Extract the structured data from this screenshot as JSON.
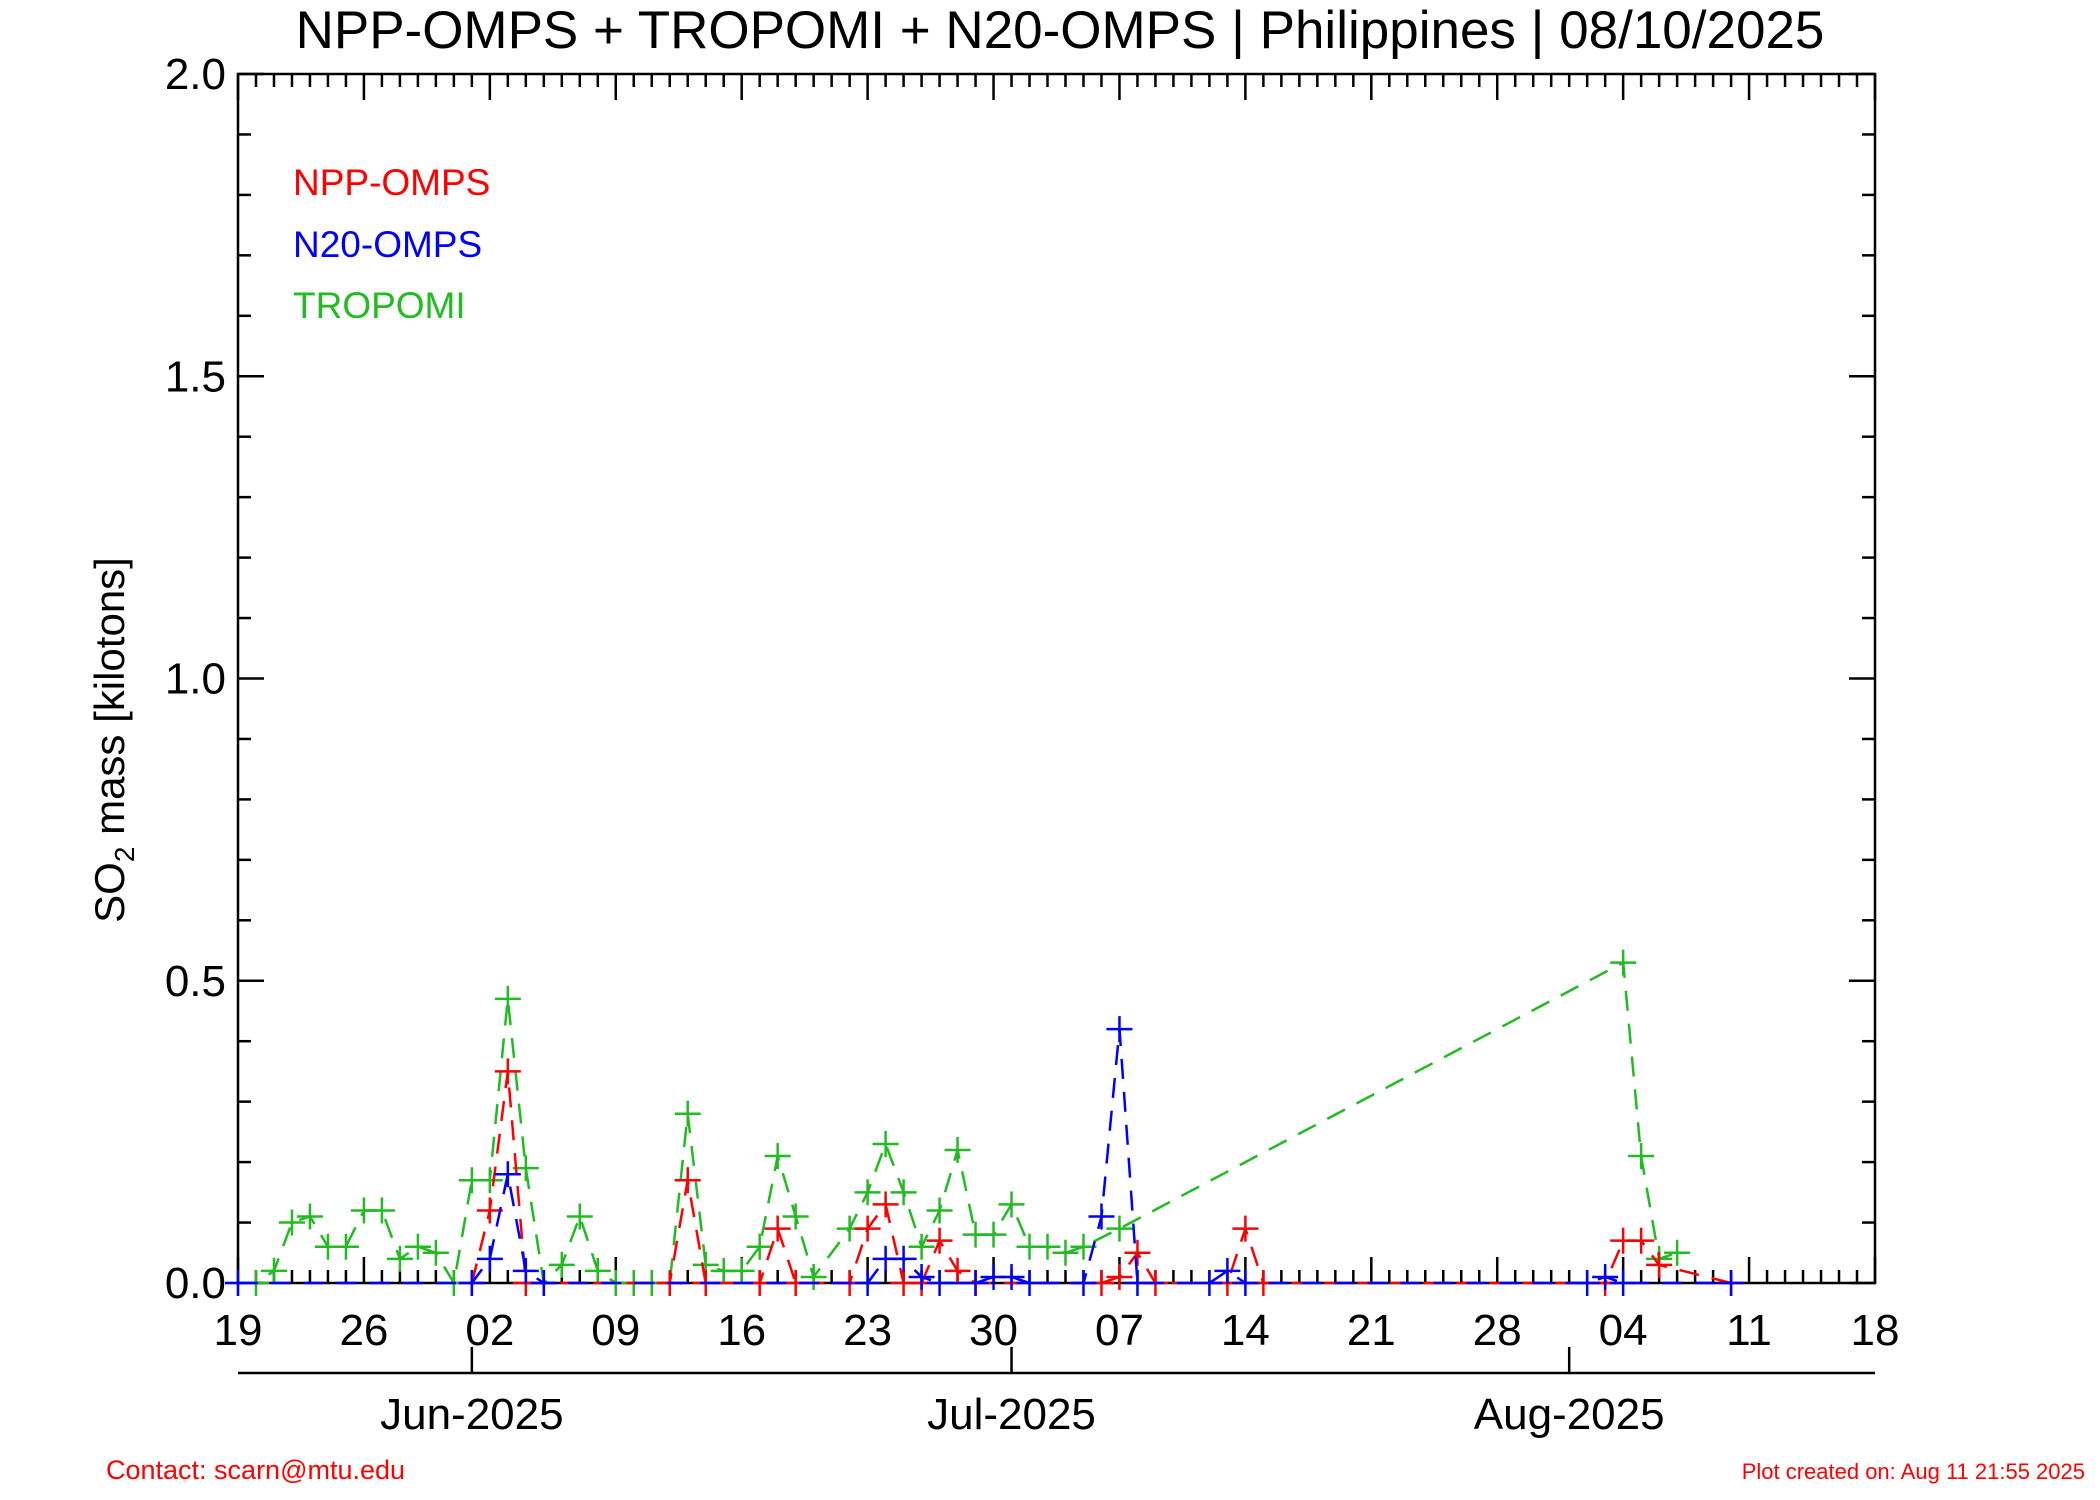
{
  "chart_data": {
    "type": "line",
    "title": "NPP-OMPS + TROPOMI + N20-OMPS | Philippines | 08/10/2025",
    "ylabel_prefix": "SO",
    "ylabel_sub": "2",
    "ylabel_suffix": " mass [kilotons]",
    "ylim": [
      0,
      2.0
    ],
    "yticks": [
      {
        "value": 0.0,
        "label": "0.0"
      },
      {
        "value": 0.5,
        "label": "0.5"
      },
      {
        "value": 1.0,
        "label": "1.0"
      },
      {
        "value": 1.5,
        "label": "1.5"
      },
      {
        "value": 2.0,
        "label": "2.0"
      }
    ],
    "xlim": [
      "2025-05-19",
      "2025-08-18"
    ],
    "xticks": [
      {
        "date": "2025-05-19",
        "label": "19"
      },
      {
        "date": "2025-05-26",
        "label": "26"
      },
      {
        "date": "2025-06-02",
        "label": "02"
      },
      {
        "date": "2025-06-09",
        "label": "09"
      },
      {
        "date": "2025-06-16",
        "label": "16"
      },
      {
        "date": "2025-06-23",
        "label": "23"
      },
      {
        "date": "2025-06-30",
        "label": "30"
      },
      {
        "date": "2025-07-07",
        "label": "07"
      },
      {
        "date": "2025-07-14",
        "label": "14"
      },
      {
        "date": "2025-07-21",
        "label": "21"
      },
      {
        "date": "2025-07-28",
        "label": "28"
      },
      {
        "date": "2025-08-04",
        "label": "04"
      },
      {
        "date": "2025-08-11",
        "label": "11"
      },
      {
        "date": "2025-08-18",
        "label": "18"
      }
    ],
    "months": [
      {
        "date": "2025-06-01",
        "label": "Jun-2025"
      },
      {
        "date": "2025-07-01",
        "label": "Jul-2025"
      },
      {
        "date": "2025-08-01",
        "label": "Aug-2025"
      }
    ],
    "legend_position": "top-left",
    "series": [
      {
        "name": "TROPOMI",
        "color": "#22bb22",
        "points": [
          [
            "2025-05-19",
            0.0
          ],
          [
            "2025-05-20",
            0.0
          ],
          [
            "2025-05-21",
            0.02
          ],
          [
            "2025-05-22",
            0.1
          ],
          [
            "2025-05-23",
            0.11
          ],
          [
            "2025-05-24",
            0.06
          ],
          [
            "2025-05-25",
            0.06
          ],
          [
            "2025-05-26",
            0.12
          ],
          [
            "2025-05-27",
            0.12
          ],
          [
            "2025-05-28",
            0.04
          ],
          [
            "2025-05-29",
            0.06
          ],
          [
            "2025-05-30",
            0.05
          ],
          [
            "2025-05-31",
            0.0
          ],
          [
            "2025-06-01",
            0.17
          ],
          [
            "2025-06-02",
            0.17
          ],
          [
            "2025-06-03",
            0.47
          ],
          [
            "2025-06-04",
            0.19
          ],
          [
            "2025-06-05",
            0.0
          ],
          [
            "2025-06-06",
            0.03
          ],
          [
            "2025-06-07",
            0.11
          ],
          [
            "2025-06-08",
            0.02
          ],
          [
            "2025-06-09",
            0.0
          ],
          [
            "2025-06-10",
            0.0
          ],
          [
            "2025-06-11",
            0.0
          ],
          [
            "2025-06-12",
            0.0
          ],
          [
            "2025-06-13",
            0.28
          ],
          [
            "2025-06-14",
            0.03
          ],
          [
            "2025-06-15",
            0.02
          ],
          [
            "2025-06-16",
            0.02
          ],
          [
            "2025-06-17",
            0.06
          ],
          [
            "2025-06-18",
            0.21
          ],
          [
            "2025-06-19",
            0.11
          ],
          [
            "2025-06-20",
            0.01
          ],
          [
            "2025-06-22",
            0.09
          ],
          [
            "2025-06-23",
            0.15
          ],
          [
            "2025-06-24",
            0.23
          ],
          [
            "2025-06-25",
            0.15
          ],
          [
            "2025-06-26",
            0.06
          ],
          [
            "2025-06-27",
            0.12
          ],
          [
            "2025-06-28",
            0.22
          ],
          [
            "2025-06-29",
            0.08
          ],
          [
            "2025-06-30",
            0.08
          ],
          [
            "2025-07-01",
            0.13
          ],
          [
            "2025-07-02",
            0.06
          ],
          [
            "2025-07-03",
            0.06
          ],
          [
            "2025-07-04",
            0.05
          ],
          [
            "2025-07-05",
            0.06
          ],
          [
            "2025-07-07",
            0.09
          ],
          [
            "2025-08-04",
            0.53
          ],
          [
            "2025-08-05",
            0.21
          ],
          [
            "2025-08-06",
            0.04
          ],
          [
            "2025-08-07",
            0.05
          ]
        ]
      },
      {
        "name": "NPP-OMPS",
        "color": "#ff0000",
        "points": [
          [
            "2025-06-01",
            0.0
          ],
          [
            "2025-06-02",
            0.12
          ],
          [
            "2025-06-03",
            0.35
          ],
          [
            "2025-06-04",
            0.0
          ],
          [
            "2025-06-05",
            0.0
          ],
          [
            "2025-06-12",
            0.0
          ],
          [
            "2025-06-13",
            0.17
          ],
          [
            "2025-06-14",
            0.0
          ],
          [
            "2025-06-17",
            0.0
          ],
          [
            "2025-06-18",
            0.09
          ],
          [
            "2025-06-19",
            0.0
          ],
          [
            "2025-06-22",
            0.0
          ],
          [
            "2025-06-23",
            0.09
          ],
          [
            "2025-06-24",
            0.13
          ],
          [
            "2025-06-25",
            0.0
          ],
          [
            "2025-06-26",
            0.0
          ],
          [
            "2025-06-27",
            0.07
          ],
          [
            "2025-06-28",
            0.02
          ],
          [
            "2025-06-29",
            0.0
          ],
          [
            "2025-07-06",
            0.0
          ],
          [
            "2025-07-07",
            0.01
          ],
          [
            "2025-07-08",
            0.05
          ],
          [
            "2025-07-09",
            0.0
          ],
          [
            "2025-07-13",
            0.0
          ],
          [
            "2025-07-14",
            0.09
          ],
          [
            "2025-07-15",
            0.0
          ],
          [
            "2025-08-03",
            0.0
          ],
          [
            "2025-08-04",
            0.07
          ],
          [
            "2025-08-05",
            0.07
          ],
          [
            "2025-08-06",
            0.03
          ],
          [
            "2025-08-10",
            0.0
          ]
        ]
      },
      {
        "name": "N20-OMPS",
        "color": "#0000ff",
        "points": [
          [
            "2025-05-19",
            0.0
          ],
          [
            "2025-06-01",
            0.0
          ],
          [
            "2025-06-02",
            0.04
          ],
          [
            "2025-06-03",
            0.18
          ],
          [
            "2025-06-04",
            0.02
          ],
          [
            "2025-06-05",
            0.0
          ],
          [
            "2025-06-23",
            0.0
          ],
          [
            "2025-06-24",
            0.04
          ],
          [
            "2025-06-25",
            0.04
          ],
          [
            "2025-06-26",
            0.01
          ],
          [
            "2025-06-27",
            0.0
          ],
          [
            "2025-06-29",
            0.0
          ],
          [
            "2025-06-30",
            0.01
          ],
          [
            "2025-07-01",
            0.01
          ],
          [
            "2025-07-02",
            0.0
          ],
          [
            "2025-07-05",
            0.0
          ],
          [
            "2025-07-06",
            0.11
          ],
          [
            "2025-07-07",
            0.42
          ],
          [
            "2025-07-08",
            0.0
          ],
          [
            "2025-07-12",
            0.0
          ],
          [
            "2025-07-13",
            0.02
          ],
          [
            "2025-07-14",
            0.0
          ],
          [
            "2025-08-02",
            0.0
          ],
          [
            "2025-08-03",
            0.01
          ],
          [
            "2025-08-04",
            0.0
          ],
          [
            "2025-08-10",
            0.0
          ]
        ]
      }
    ]
  },
  "legend": {
    "items": [
      {
        "label": "NPP-OMPS",
        "color": "#ff0000"
      },
      {
        "label": "N20-OMPS",
        "color": "#0000ff"
      },
      {
        "label": "TROPOMI",
        "color": "#22bb22"
      }
    ]
  },
  "footer": {
    "contact": "Contact: scarn@mtu.edu",
    "created": "Plot created on: Aug 11 21:55 2025"
  }
}
